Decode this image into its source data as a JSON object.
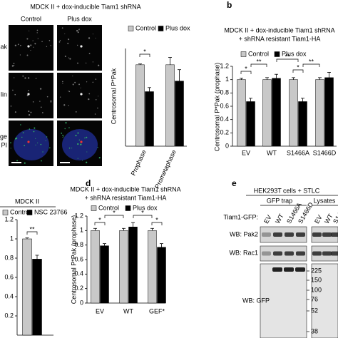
{
  "chart_data": [
    {
      "type": "bar",
      "ylabel": "Centrosomal P*Pak",
      "categories": [
        "Prophase",
        "Prometaphase"
      ],
      "series": [
        {
          "name": "Control",
          "color": "#c8c8c8",
          "values": [
            1,
            1
          ],
          "errors": [
            0.01,
            0.09
          ]
        },
        {
          "name": "Plus dox",
          "color": "#000000",
          "values": [
            0.67,
            0.8
          ],
          "errors": [
            0.05,
            0.14
          ]
        }
      ],
      "ylim": [
        0,
        1.2
      ],
      "annotations": [
        "*"
      ]
    },
    {
      "type": "bar",
      "title": "MDCK II + dox-inducible Tiam1 shRNA",
      "subtitle": "+ shRNA resistant Tiam1-HA",
      "ylabel": "Centrosomal P*Pak (prophase)",
      "categories": [
        "EV",
        "WT",
        "S1466A",
        "S1466D"
      ],
      "series": [
        {
          "name": "Control",
          "color": "#c8c8c8",
          "values": [
            1,
            1,
            1,
            1
          ],
          "errors": [
            0.02,
            0.03,
            0.03,
            0.03
          ]
        },
        {
          "name": "Plus dox",
          "color": "#000000",
          "values": [
            0.67,
            1.02,
            0.67,
            1.03
          ],
          "errors": [
            0.05,
            0.06,
            0.05,
            0.08
          ]
        }
      ],
      "ylim": [
        0,
        1.2
      ],
      "yticks": [
        0,
        0.2,
        0.4,
        0.6,
        0.8,
        1,
        1.2
      ],
      "annotations": [
        "*",
        "**",
        "**",
        "*",
        "**"
      ]
    },
    {
      "type": "bar",
      "title": "MDCK II",
      "categories": [
        null
      ],
      "series": [
        {
          "name": "Control",
          "color": "#c8c8c8",
          "values": [
            1
          ],
          "errors": [
            0.01
          ]
        },
        {
          "name": "NSC 23766",
          "color": "#000000",
          "values": [
            0.79
          ],
          "errors": [
            0.04
          ]
        }
      ],
      "ylim": [
        0,
        1.2
      ],
      "yticks": [
        0.2,
        0.4,
        0.6,
        0.8,
        1,
        1.2
      ],
      "annotations": [
        "**"
      ]
    },
    {
      "type": "bar",
      "title": "MDCK II + dox-inducible Tiam1 shRNA",
      "subtitle": "+ shRNA resistant Tiam1-HA",
      "ylabel": "Centrosomal P*Pak (prophase)",
      "categories": [
        "EV",
        "WT",
        "GEF*"
      ],
      "series": [
        {
          "name": "Control",
          "color": "#c8c8c8",
          "values": [
            1,
            1,
            1
          ],
          "errors": [
            0.03,
            0.03,
            0.03
          ]
        },
        {
          "name": "Plus dox",
          "color": "#000000",
          "values": [
            0.79,
            1.05,
            0.77
          ],
          "errors": [
            0.03,
            0.06,
            0.05
          ]
        }
      ],
      "ylim": [
        0,
        1.2
      ],
      "yticks": [
        0,
        0.2,
        0.4,
        0.6,
        0.8,
        1,
        1.2
      ],
      "annotations": [
        "*",
        "*",
        "*",
        "*"
      ]
    }
  ],
  "figure": {
    "microscopy": {
      "title": "MDCK II + dox-inducible Tiam1 shRNA",
      "columns": [
        "Control",
        "Plus dox"
      ],
      "rows": [
        "ak",
        "lin",
        "ge",
        "PI"
      ]
    },
    "panel_labels": [
      "b",
      "d",
      "e"
    ],
    "blot": {
      "title": "HEK293T cells + STLC",
      "groups": [
        "GFP trap",
        "Lysates"
      ],
      "lane_header": "Tiam1-GFP:",
      "lanes": [
        "EV",
        "WT",
        "S1466A",
        "S1466D",
        "EV",
        "WT",
        "S1466"
      ],
      "rows": [
        "WB: Pak2",
        "WB: Rac1",
        "WB: GFP"
      ],
      "markers": [
        225,
        150,
        100,
        76,
        52,
        38
      ]
    }
  }
}
